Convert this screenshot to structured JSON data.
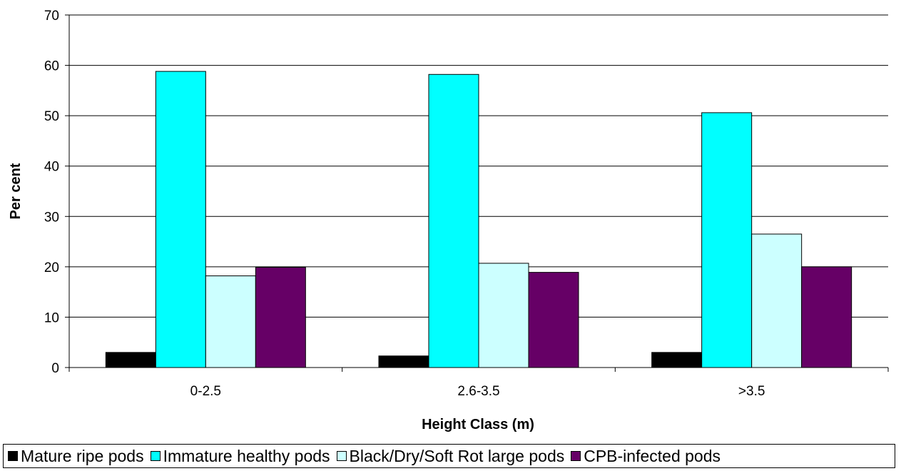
{
  "chart_data": {
    "type": "bar",
    "title": "",
    "xlabel": "Height Class (m)",
    "ylabel": "Per cent",
    "ylim": [
      0,
      70
    ],
    "yticks": [
      "0",
      "10",
      "20",
      "30",
      "40",
      "50",
      "60",
      "70"
    ],
    "grid": true,
    "legend_position": "bottom",
    "categories": [
      "0-2.5",
      "2.6-3.5",
      ">3.5"
    ],
    "series": [
      {
        "name": "Mature ripe pods",
        "color": "#000000",
        "values": [
          3.0,
          2.3,
          3.0
        ]
      },
      {
        "name": "Immature healthy pods",
        "color": "#00FFFF",
        "values": [
          58.8,
          58.2,
          50.6
        ]
      },
      {
        "name": "Black/Dry/Soft Rot large pods",
        "color": "#CCFFFF",
        "values": [
          18.2,
          20.7,
          26.5
        ]
      },
      {
        "name": "CPB-infected pods",
        "color": "#660066",
        "values": [
          19.9,
          18.9,
          20.0
        ]
      }
    ]
  }
}
